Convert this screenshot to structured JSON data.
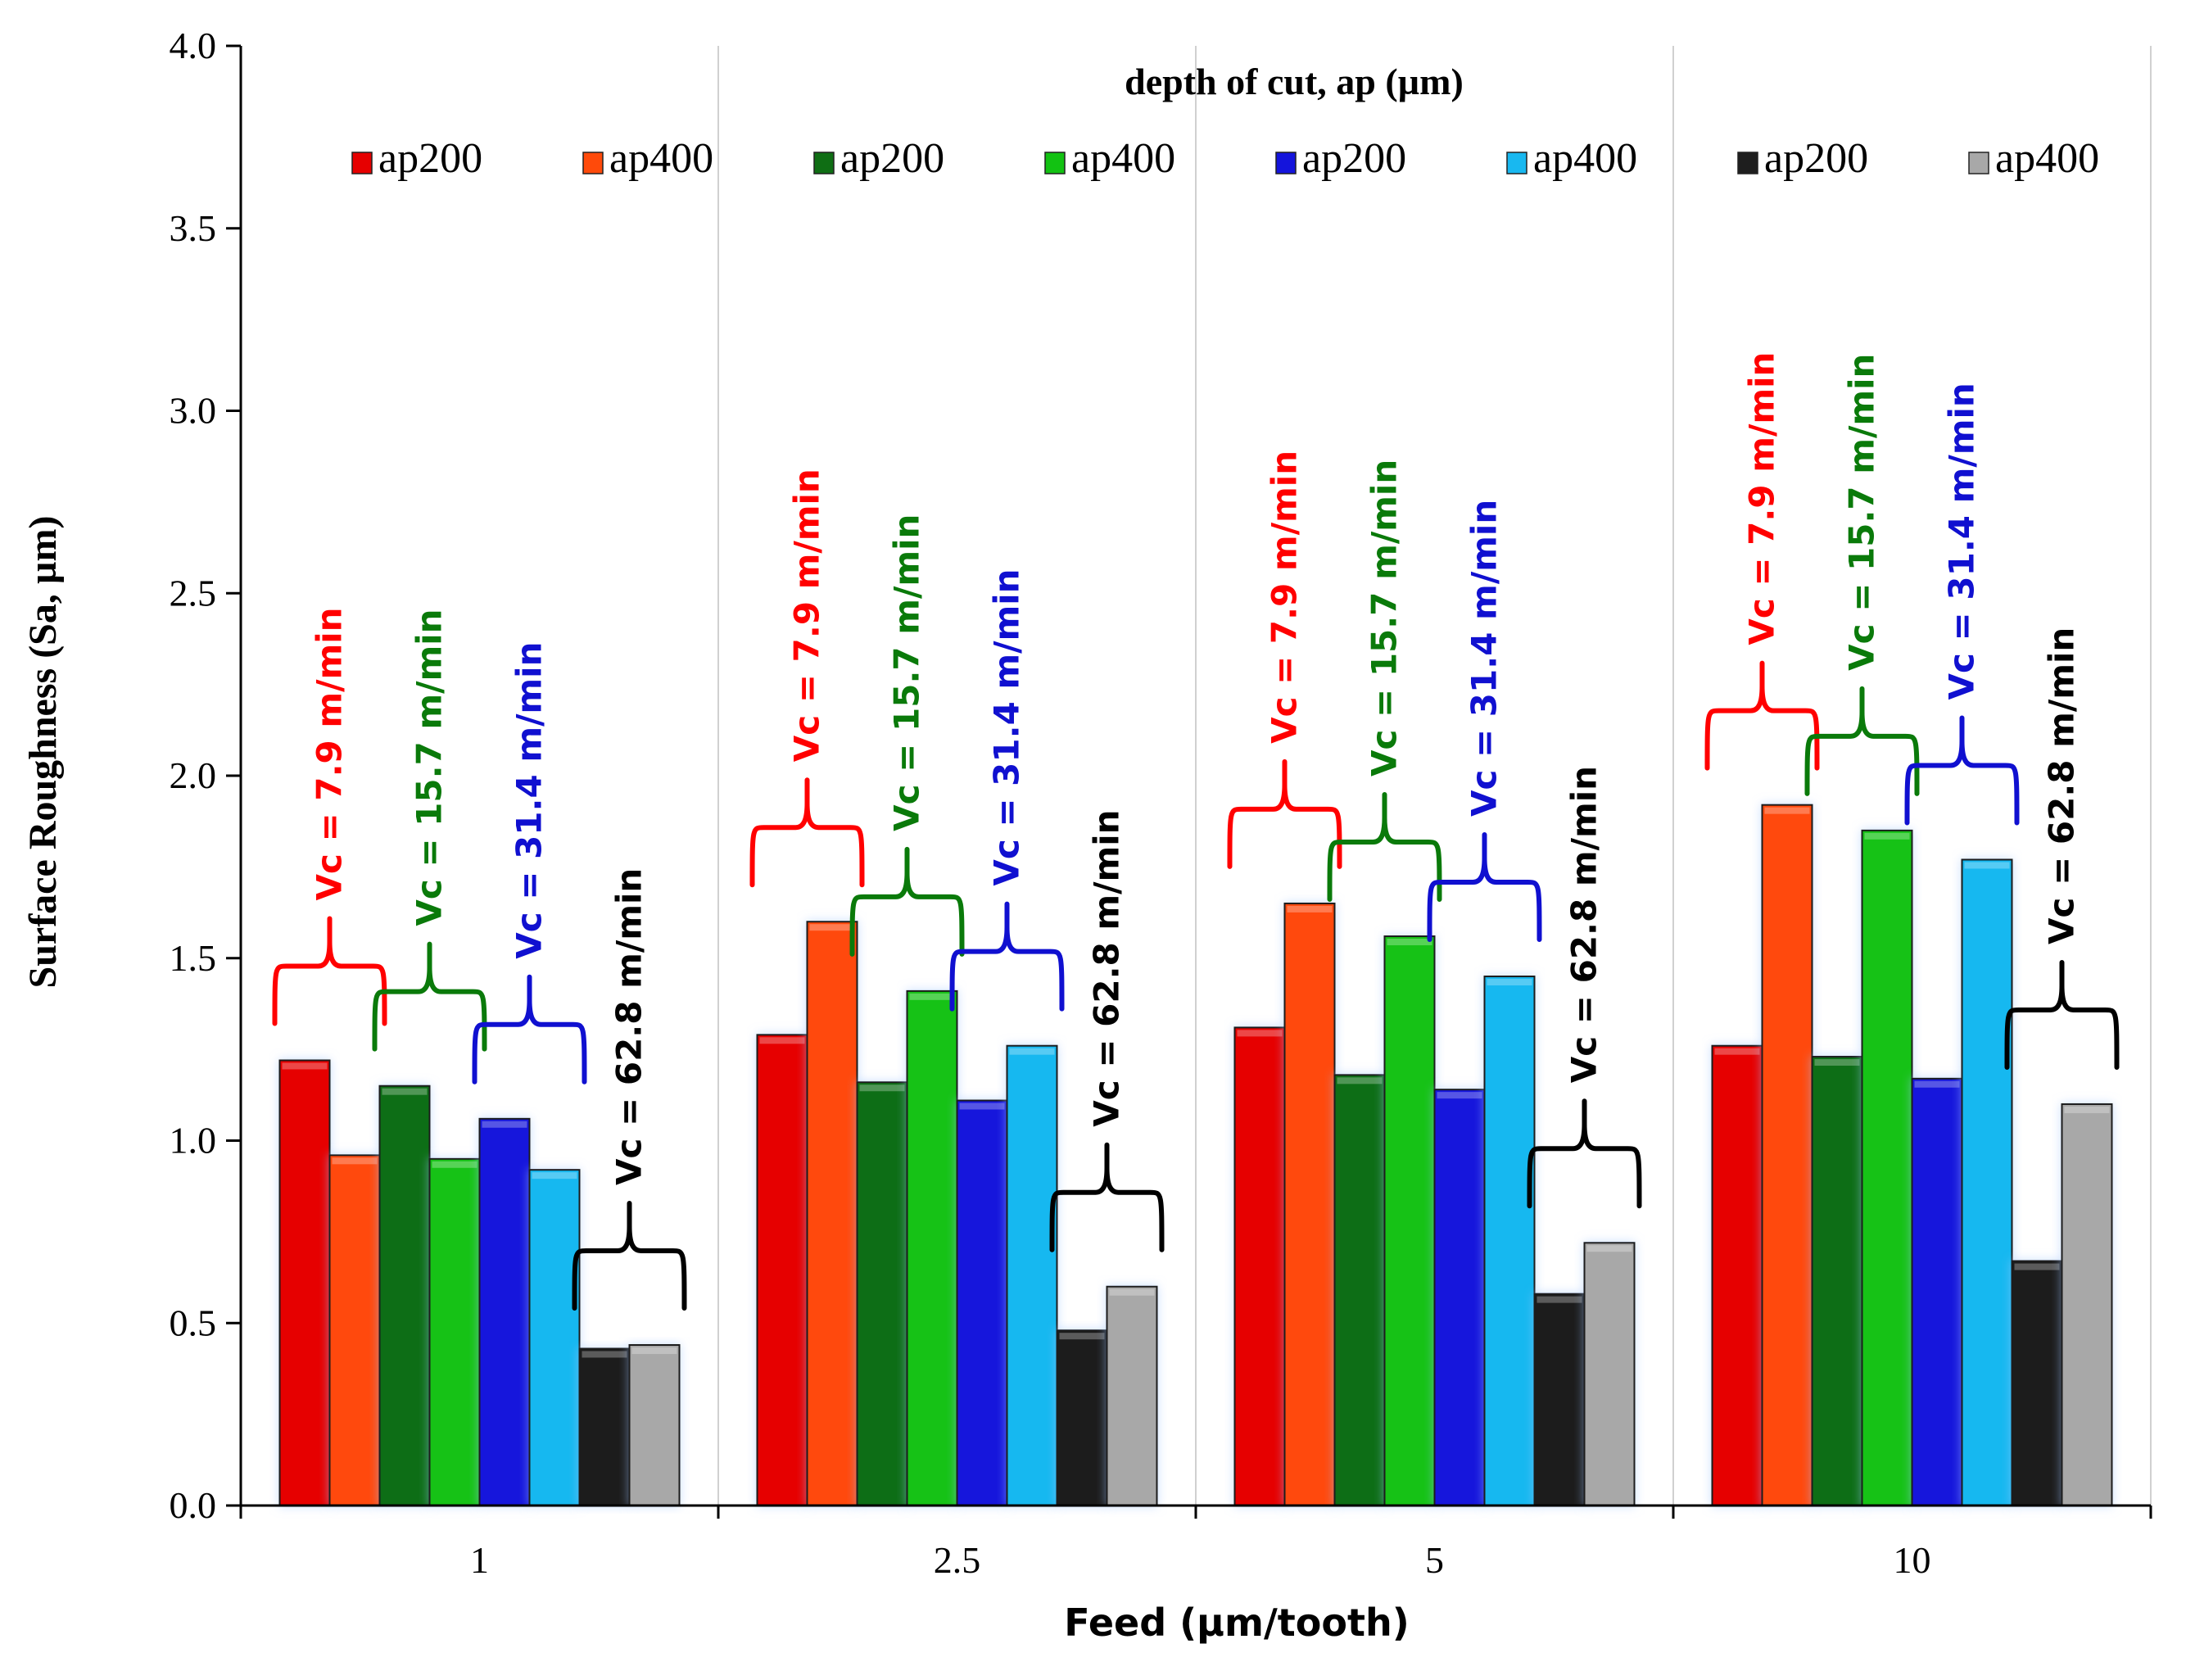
{
  "chart_data": {
    "type": "bar",
    "title": "",
    "xlabel": "Feed (µm/tooth)",
    "ylabel": "Surface Roughness (Sa, µm)",
    "ylim": [
      0,
      4.0
    ],
    "yticks": [
      "0.0",
      "0.5",
      "1.0",
      "1.5",
      "2.0",
      "2.5",
      "3.0",
      "3.5",
      "4.0"
    ],
    "categories": [
      "1",
      "2.5",
      "5",
      "10"
    ],
    "legend_title": "depth of cut, ap (µm)",
    "legend_position": "top",
    "grid": "vertical",
    "series": [
      {
        "name": "ap200",
        "group": "Vc = 7.9 m/min",
        "color": "#e60000",
        "values": [
          1.22,
          1.29,
          1.31,
          1.26
        ]
      },
      {
        "name": "ap400",
        "group": "Vc = 7.9 m/min",
        "color": "#ff4a0a",
        "values": [
          0.96,
          1.6,
          1.65,
          1.92
        ]
      },
      {
        "name": "ap200",
        "group": "Vc = 15.7 m/min",
        "color": "#0f6e14",
        "values": [
          1.15,
          1.16,
          1.18,
          1.23
        ]
      },
      {
        "name": "ap400",
        "group": "Vc = 15.7 m/min",
        "color": "#12c212",
        "values": [
          0.95,
          1.41,
          1.56,
          1.85
        ]
      },
      {
        "name": "ap200",
        "group": "Vc = 31.4 m/min",
        "color": "#1414dc",
        "values": [
          1.06,
          1.11,
          1.14,
          1.17
        ]
      },
      {
        "name": "ap400",
        "group": "Vc = 31.4 m/min",
        "color": "#18b8f0",
        "values": [
          0.92,
          1.26,
          1.45,
          1.77
        ]
      },
      {
        "name": "ap200",
        "group": "Vc = 62.8 m/min",
        "color": "#1e1e1e",
        "values": [
          0.43,
          0.48,
          0.58,
          0.67
        ]
      },
      {
        "name": "ap400",
        "group": "Vc = 62.8 m/min",
        "color": "#a8a8a8",
        "values": [
          0.44,
          0.6,
          0.72,
          1.1
        ]
      }
    ],
    "annotations": [
      {
        "text": "Vc = 7.9 m/min",
        "color": "#ff0000",
        "pair": 0
      },
      {
        "text": "Vc = 15.7 m/min",
        "color": "#0a7a0a",
        "pair": 1
      },
      {
        "text": "Vc = 31.4 m/min",
        "color": "#1010d0",
        "pair": 2
      },
      {
        "text": "Vc = 62.8 m/min",
        "color": "#000000",
        "pair": 3
      }
    ]
  }
}
